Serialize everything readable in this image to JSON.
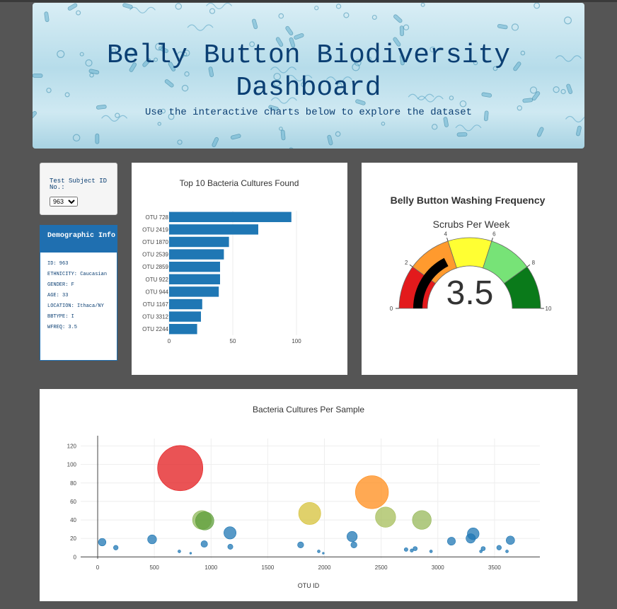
{
  "banner": {
    "title_line1": "Belly Button Biodiversity",
    "title_line2": "Dashboard",
    "subtitle": "Use the interactive charts below to explore the dataset"
  },
  "selector": {
    "label": "Test Subject ID No.:",
    "selected": "963",
    "options": [
      "963"
    ]
  },
  "demographic": {
    "heading": "Demographic Info",
    "rows": [
      "ID: 963",
      "ETHNICITY: Caucasian",
      "GENDER: F",
      "AGE: 33",
      "LOCATION: Ithaca/NY",
      "BBTYPE: I",
      "WFREQ: 3.5"
    ]
  },
  "colors": {
    "bar": "#1f77b4",
    "panel_header": "#1f6fb0",
    "page_bg": "#555555"
  },
  "chart_data": [
    {
      "type": "bar",
      "orientation": "horizontal",
      "title": "Top 10 Bacteria Cultures Found",
      "categories": [
        "OTU 728",
        "OTU 2419",
        "OTU 1870",
        "OTU 2539",
        "OTU 2859",
        "OTU 922",
        "OTU 944",
        "OTU 1167",
        "OTU 3312",
        "OTU 2244"
      ],
      "values": [
        96,
        70,
        47,
        43,
        40,
        40,
        39,
        26,
        25,
        22
      ],
      "xlim": [
        0,
        115
      ],
      "xticks": [
        0,
        50,
        100
      ],
      "grid": true
    },
    {
      "type": "gauge",
      "title": "Belly Button Washing Frequency",
      "subtitle": "Scrubs Per Week",
      "value": 3.5,
      "value_label": "3.5",
      "range": [
        0,
        10
      ],
      "ticks": [
        0,
        2,
        4,
        6,
        8,
        10
      ],
      "steps": [
        {
          "range": [
            0,
            2
          ],
          "color": "#e31a1c"
        },
        {
          "range": [
            2,
            4
          ],
          "color": "#ff9a2e"
        },
        {
          "range": [
            4,
            6
          ],
          "color": "#ffff33"
        },
        {
          "range": [
            6,
            8
          ],
          "color": "#77e377"
        },
        {
          "range": [
            8,
            10
          ],
          "color": "#0a7a1a"
        }
      ],
      "bar_color": "#000000"
    },
    {
      "type": "scatter",
      "subtype": "bubble",
      "title": "Bacteria Cultures Per Sample",
      "xlabel": "OTU ID",
      "ylabel": "",
      "xlim": [
        -150,
        3900
      ],
      "ylim": [
        -2,
        128
      ],
      "xticks": [
        0,
        500,
        1000,
        1500,
        2000,
        2500,
        3000,
        3500
      ],
      "yticks": [
        0,
        20,
        40,
        60,
        80,
        100,
        120
      ],
      "grid": true,
      "points": [
        {
          "x": 40,
          "y": 16,
          "c": "#1f77b4"
        },
        {
          "x": 160,
          "y": 10,
          "c": "#1f77b4"
        },
        {
          "x": 480,
          "y": 19,
          "c": "#1f77b4"
        },
        {
          "x": 728,
          "y": 96,
          "c": "#e31a1c"
        },
        {
          "x": 720,
          "y": 6,
          "c": "#1f77b4"
        },
        {
          "x": 820,
          "y": 4,
          "c": "#1f77b4"
        },
        {
          "x": 920,
          "y": 40,
          "c": "#8fb85a"
        },
        {
          "x": 944,
          "y": 39,
          "c": "#5e9e3a"
        },
        {
          "x": 940,
          "y": 14,
          "c": "#1f77b4"
        },
        {
          "x": 1167,
          "y": 26,
          "c": "#1f77b4"
        },
        {
          "x": 1170,
          "y": 11,
          "c": "#1f77b4"
        },
        {
          "x": 1790,
          "y": 13,
          "c": "#1f77b4"
        },
        {
          "x": 1870,
          "y": 47,
          "c": "#d6c23a"
        },
        {
          "x": 1950,
          "y": 6,
          "c": "#1f77b4"
        },
        {
          "x": 1990,
          "y": 4,
          "c": "#1f77b4"
        },
        {
          "x": 2244,
          "y": 22,
          "c": "#1f77b4"
        },
        {
          "x": 2260,
          "y": 13,
          "c": "#1f77b4"
        },
        {
          "x": 2419,
          "y": 70,
          "c": "#ff8c1a"
        },
        {
          "x": 2539,
          "y": 43,
          "c": "#a6bd5a"
        },
        {
          "x": 2720,
          "y": 8,
          "c": "#1f77b4"
        },
        {
          "x": 2770,
          "y": 7,
          "c": "#1f77b4"
        },
        {
          "x": 2800,
          "y": 9,
          "c": "#1f77b4"
        },
        {
          "x": 2859,
          "y": 40,
          "c": "#97b85a"
        },
        {
          "x": 2940,
          "y": 6,
          "c": "#1f77b4"
        },
        {
          "x": 3120,
          "y": 17,
          "c": "#1f77b4"
        },
        {
          "x": 3290,
          "y": 20,
          "c": "#1f77b4"
        },
        {
          "x": 3312,
          "y": 25,
          "c": "#1f77b4"
        },
        {
          "x": 3380,
          "y": 6,
          "c": "#1f77b4"
        },
        {
          "x": 3400,
          "y": 9,
          "c": "#1f77b4"
        },
        {
          "x": 3540,
          "y": 10,
          "c": "#1f77b4"
        },
        {
          "x": 3610,
          "y": 6,
          "c": "#1f77b4"
        },
        {
          "x": 3640,
          "y": 18,
          "c": "#1f77b4"
        }
      ]
    }
  ]
}
